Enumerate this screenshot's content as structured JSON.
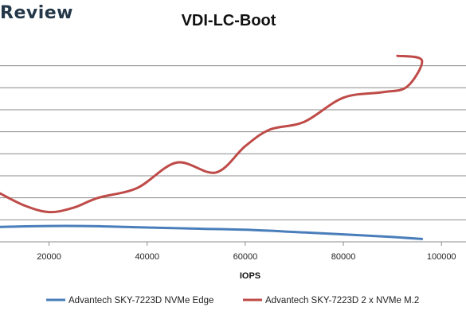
{
  "brand": {
    "text": "Review"
  },
  "chart_data": {
    "type": "line",
    "title": "VDI-LC-Boot",
    "xlabel": "IOPS",
    "ylabel": "",
    "xlim": [
      10000,
      105000
    ],
    "x_ticks": [
      20000,
      40000,
      60000,
      80000,
      100000
    ],
    "x_tick_labels": [
      "20000",
      "40000",
      "60000",
      "80000",
      "100000"
    ],
    "grid": "horizontal",
    "legend_position": "bottom",
    "series": [
      {
        "name": "Advantech SKY-7223D NVMe Edge",
        "color": "#4a7ebb",
        "points": [
          [
            10000,
            0.68
          ],
          [
            20000,
            0.72
          ],
          [
            30000,
            0.71
          ],
          [
            40000,
            0.65
          ],
          [
            50000,
            0.6
          ],
          [
            60000,
            0.55
          ],
          [
            70000,
            0.45
          ],
          [
            80000,
            0.34
          ],
          [
            90000,
            0.22
          ],
          [
            96000,
            0.13
          ]
        ]
      },
      {
        "name": "Advantech SKY-7223D 2 x NVMe M.2",
        "color": "#be4b48",
        "points": [
          [
            10000,
            2.2
          ],
          [
            15000,
            1.65
          ],
          [
            20000,
            1.35
          ],
          [
            25000,
            1.55
          ],
          [
            30000,
            2.0
          ],
          [
            38000,
            2.45
          ],
          [
            46000,
            3.6
          ],
          [
            54000,
            3.15
          ],
          [
            60000,
            4.35
          ],
          [
            65000,
            5.1
          ],
          [
            72000,
            5.45
          ],
          [
            80000,
            6.55
          ],
          [
            88000,
            6.8
          ],
          [
            93000,
            7.05
          ],
          [
            96000,
            8.25
          ],
          [
            91000,
            8.45
          ]
        ]
      }
    ]
  }
}
